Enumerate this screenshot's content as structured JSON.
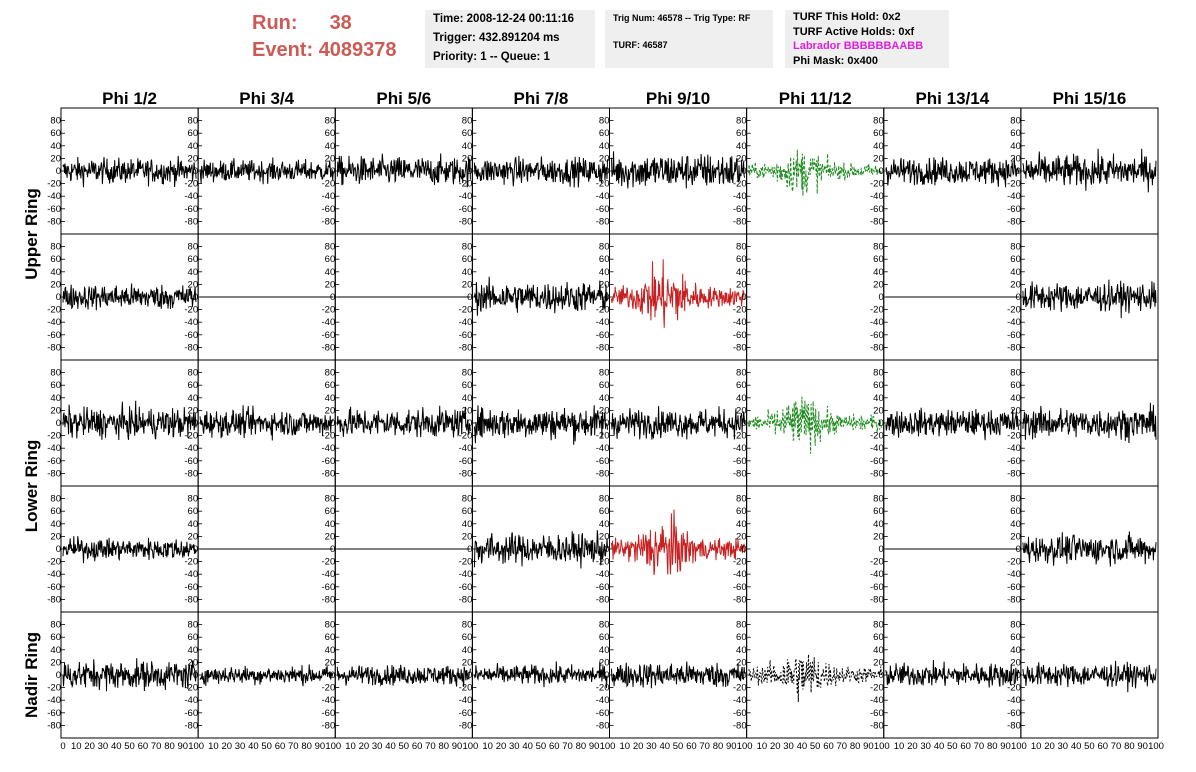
{
  "header": {
    "run_label": "Run:",
    "run_value": "38",
    "event_label": "Event:",
    "event_value": "4089378",
    "time": "Time: 2008-12-24 00:11:16",
    "trigger": "Trigger: 432.891204 ms",
    "priority": "Priority: 1 -- Queue: 1",
    "trig_num": "Trig Num: 46578 -- Trig Type: RF",
    "turf": "TURF: 46587",
    "turf_this_hold": "TURF This Hold: 0x2",
    "turf_active_holds": "TURF Active Holds: 0xf",
    "labrador": "Labrador BBBBBBAABB",
    "phi_mask": "Phi Mask: 0x400"
  },
  "colors": {
    "run_text": "#cc5a55",
    "labrador_text": "#e020e0",
    "trace_default": "#000000",
    "trace_triggered": "#c82020",
    "trace_masked": "#1a8a1a"
  },
  "chart_data": {
    "type": "line",
    "columns": [
      "Phi 1/2",
      "Phi 3/4",
      "Phi 5/6",
      "Phi 7/8",
      "Phi 9/10",
      "Phi 11/12",
      "Phi 13/14",
      "Phi 15/16"
    ],
    "rows": [
      "Upper Ring",
      "Upper Ring",
      "Lower Ring",
      "Lower Ring",
      "Nadir Ring"
    ],
    "row_labels": [
      "Upper Ring",
      "Lower Ring",
      "Nadir Ring"
    ],
    "xlim": [
      0,
      100
    ],
    "ylim": [
      -100,
      100
    ],
    "y_ticks": [
      80,
      60,
      40,
      20,
      0,
      -20,
      -40,
      -60,
      -80
    ],
    "y_tick_labels": [
      "80",
      "60",
      "40",
      "20",
      "0",
      "-20",
      "-40",
      "-60",
      "-80"
    ],
    "x_ticks_first": [
      "0",
      "10",
      "20",
      "30",
      "40",
      "50",
      "60",
      "70",
      "80",
      "90",
      "100"
    ],
    "x_ticks_other": [
      "10",
      "20",
      "30",
      "40",
      "50",
      "60",
      "70",
      "80",
      "90",
      "100"
    ],
    "panels": [
      [
        {
          "style": "black",
          "amp": 14
        },
        {
          "style": "black",
          "amp": 12
        },
        {
          "style": "black",
          "amp": 16
        },
        {
          "style": "black",
          "amp": 15
        },
        {
          "style": "black",
          "amp": 20
        },
        {
          "style": "green",
          "amp": 14,
          "burst": true
        },
        {
          "style": "black",
          "amp": 15
        },
        {
          "style": "black",
          "amp": 18
        }
      ],
      [
        {
          "style": "black",
          "amp": 14
        },
        {
          "style": "flat",
          "amp": 0
        },
        {
          "style": "flat",
          "amp": 0
        },
        {
          "style": "black",
          "amp": 17
        },
        {
          "style": "red",
          "amp": 20,
          "burst": true
        },
        {
          "style": "none",
          "amp": 0
        },
        {
          "style": "flat",
          "amp": 0
        },
        {
          "style": "black",
          "amp": 16
        }
      ],
      [
        {
          "style": "black",
          "amp": 17
        },
        {
          "style": "black",
          "amp": 15
        },
        {
          "style": "black",
          "amp": 16
        },
        {
          "style": "black",
          "amp": 18
        },
        {
          "style": "black",
          "amp": 16
        },
        {
          "style": "green",
          "amp": 16,
          "burst": true
        },
        {
          "style": "black",
          "amp": 15
        },
        {
          "style": "black",
          "amp": 17
        }
      ],
      [
        {
          "style": "black",
          "amp": 12
        },
        {
          "style": "flat",
          "amp": 0
        },
        {
          "style": "flat",
          "amp": 0
        },
        {
          "style": "black",
          "amp": 17
        },
        {
          "style": "red",
          "amp": 20,
          "burst": true
        },
        {
          "style": "none",
          "amp": 0
        },
        {
          "style": "flat",
          "amp": 0
        },
        {
          "style": "black",
          "amp": 16
        }
      ],
      [
        {
          "style": "black",
          "amp": 16
        },
        {
          "style": "black",
          "amp": 10
        },
        {
          "style": "black",
          "amp": 11
        },
        {
          "style": "black",
          "amp": 11
        },
        {
          "style": "black",
          "amp": 14
        },
        {
          "style": "dotted",
          "amp": 16,
          "burst": true
        },
        {
          "style": "black",
          "amp": 13
        },
        {
          "style": "black",
          "amp": 13
        }
      ]
    ]
  }
}
